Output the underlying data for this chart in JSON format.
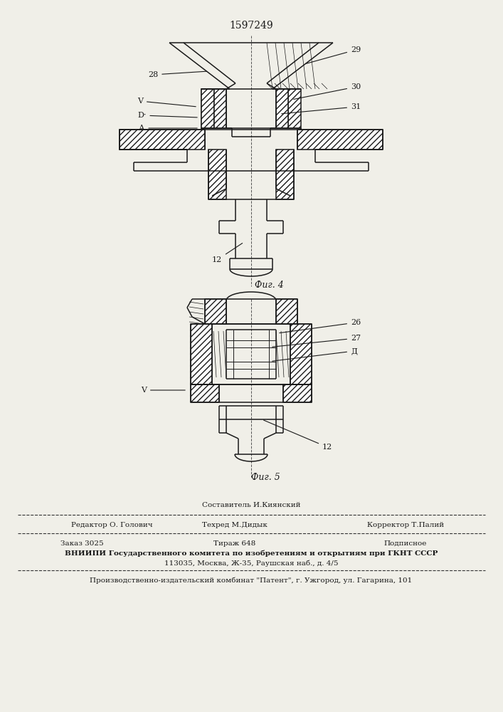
{
  "patent_number": "1597249",
  "background_color": "#f0efe8",
  "line_color": "#1a1a1a",
  "fig4_label": "Фиг. 4",
  "fig5_label": "Фиг. 5",
  "footer_line1_top": "Составитель И.Киянский",
  "footer_line1_left": "Редактор О. Голович",
  "footer_line1_center": "Техред М.Дидык",
  "footer_line1_right": "Корректор Т.Палий",
  "footer_line2_left": "Заказ 3025",
  "footer_line2_center": "Тираж 648",
  "footer_line2_right": "Подписное",
  "footer_line3": "ВНИИПИ Государственного комитета по изобретениям и открытиям при ГКНТ СССР",
  "footer_line4": "113035, Москва, Ж-35, Раушская наб., д. 4/5",
  "footer_line5": "Производственно-издательский комбинат \"Патент\", г. Ужгород, ул. Гагарина, 101"
}
